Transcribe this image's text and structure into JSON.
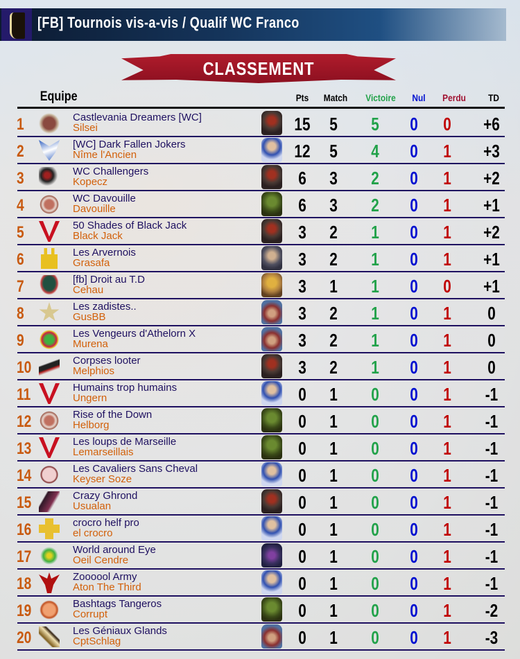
{
  "title": "[FB] Tournois vis-a-vis / Qualif WC Franco",
  "banner": "CLASSEMENT",
  "headers": {
    "team": "Equipe",
    "pts": "Pts",
    "match": "Match",
    "win": "Victoire",
    "draw": "Nul",
    "loss": "Perdu",
    "td": "TD"
  },
  "colors": {
    "rank": "#c85a10",
    "team": "#1e1060",
    "coach": "#d2600a",
    "win": "#22a24a",
    "draw": "#0010d0",
    "loss": "#c00000",
    "value": "#000000"
  },
  "rows": [
    {
      "rank": "1",
      "team": "Castlevania Dreamers [WC]",
      "coach": "Silsei",
      "logo": "egg-emblem",
      "race": "chaos",
      "pts": "15",
      "match": "5",
      "win": "5",
      "draw": "0",
      "loss": "0",
      "td": "+6"
    },
    {
      "rank": "2",
      "team": "[WC] Dark Fallen Jokers",
      "coach": "Nîme l'Ancien",
      "logo": "wolf-emblem",
      "race": "human",
      "pts": "12",
      "match": "5",
      "win": "4",
      "draw": "0",
      "loss": "1",
      "td": "+3"
    },
    {
      "rank": "3",
      "team": "WC Challengers",
      "coach": "Kopecz",
      "logo": "dark-figure-emblem",
      "race": "chaos",
      "pts": "6",
      "match": "3",
      "win": "2",
      "draw": "0",
      "loss": "1",
      "td": "+2"
    },
    {
      "rank": "4",
      "team": "WC Davouille",
      "coach": "Davouille",
      "logo": "round-seal-emblem",
      "race": "lizardman",
      "pts": "6",
      "match": "3",
      "win": "2",
      "draw": "0",
      "loss": "1",
      "td": "+1"
    },
    {
      "rank": "5",
      "team": "50 Shades of Black Jack",
      "coach": "Black Jack",
      "logo": "red-v-emblem",
      "race": "chaos",
      "pts": "3",
      "match": "2",
      "win": "1",
      "draw": "0",
      "loss": "1",
      "td": "+2"
    },
    {
      "rank": "6",
      "team": "Les Arvernois",
      "coach": "Grasafa",
      "logo": "castle-emblem",
      "race": "dwarf",
      "pts": "3",
      "match": "2",
      "win": "1",
      "draw": "0",
      "loss": "1",
      "td": "+1"
    },
    {
      "rank": "7",
      "team": "[fb] Droit au T.D",
      "coach": "Cehau",
      "logo": "spiky-creature-emblem",
      "race": "amazon",
      "pts": "3",
      "match": "1",
      "win": "1",
      "draw": "0",
      "loss": "0",
      "td": "+1"
    },
    {
      "rank": "8",
      "team": "Les zadistes..",
      "coach": "GusBB",
      "logo": "star-a-emblem",
      "race": "norse",
      "pts": "3",
      "match": "2",
      "win": "1",
      "draw": "0",
      "loss": "1",
      "td": "0"
    },
    {
      "rank": "9",
      "team": "Les Vengeurs d'Athelorn X",
      "coach": "Murena",
      "logo": "dragon-emblem",
      "race": "norse",
      "pts": "3",
      "match": "2",
      "win": "1",
      "draw": "0",
      "loss": "1",
      "td": "0"
    },
    {
      "rank": "10",
      "team": "Corpses looter",
      "coach": "Melphios",
      "logo": "fish-skeleton-emblem",
      "race": "chaos",
      "pts": "3",
      "match": "2",
      "win": "1",
      "draw": "0",
      "loss": "1",
      "td": "0"
    },
    {
      "rank": "11",
      "team": "Humains trop humains",
      "coach": "Ungern",
      "logo": "red-v-emblem",
      "race": "human",
      "pts": "0",
      "match": "1",
      "win": "0",
      "draw": "0",
      "loss": "1",
      "td": "-1"
    },
    {
      "rank": "12",
      "team": "Rise of the Down",
      "coach": "Helborg",
      "logo": "round-seal-emblem",
      "race": "lizardman",
      "pts": "0",
      "match": "1",
      "win": "0",
      "draw": "0",
      "loss": "1",
      "td": "-1"
    },
    {
      "rank": "13",
      "team": "Les loups de Marseille",
      "coach": "Lemarseillais",
      "logo": "red-v-emblem",
      "race": "lizardman",
      "pts": "0",
      "match": "1",
      "win": "0",
      "draw": "0",
      "loss": "1",
      "td": "-1"
    },
    {
      "rank": "14",
      "team": "Les Cavaliers Sans Cheval",
      "coach": "Keyser Soze",
      "logo": "pig-emblem",
      "race": "human",
      "pts": "0",
      "match": "1",
      "win": "0",
      "draw": "0",
      "loss": "1",
      "td": "-1"
    },
    {
      "rank": "15",
      "team": "Crazy Ghrond",
      "coach": "Usualan",
      "logo": "griffin-emblem",
      "race": "chaos",
      "pts": "0",
      "match": "1",
      "win": "0",
      "draw": "0",
      "loss": "1",
      "td": "-1"
    },
    {
      "rank": "16",
      "team": "crocro helf pro",
      "coach": "el crocro",
      "logo": "golden-cross-emblem",
      "race": "human",
      "pts": "0",
      "match": "1",
      "win": "0",
      "draw": "0",
      "loss": "1",
      "td": "-1"
    },
    {
      "rank": "17",
      "team": "World around Eye",
      "coach": "Oeil Cendre",
      "logo": "green-wings-emblem",
      "race": "dark-elf",
      "pts": "0",
      "match": "1",
      "win": "0",
      "draw": "0",
      "loss": "1",
      "td": "-1"
    },
    {
      "rank": "18",
      "team": "Zoooool Army",
      "coach": "Aton The Third",
      "logo": "red-eagle-emblem",
      "race": "human",
      "pts": "0",
      "match": "1",
      "win": "0",
      "draw": "0",
      "loss": "1",
      "td": "-1"
    },
    {
      "rank": "19",
      "team": "Bashtags Tangeros",
      "coach": "Corrupt",
      "logo": "orange-mask-emblem",
      "race": "lizardman",
      "pts": "0",
      "match": "1",
      "win": "0",
      "draw": "0",
      "loss": "1",
      "td": "-2"
    },
    {
      "rank": "20",
      "team": "Les Géniaux Glands",
      "coach": "CptSchlag",
      "logo": "bird-emblem",
      "race": "norse",
      "pts": "0",
      "match": "1",
      "win": "0",
      "draw": "0",
      "loss": "1",
      "td": "-3"
    }
  ]
}
